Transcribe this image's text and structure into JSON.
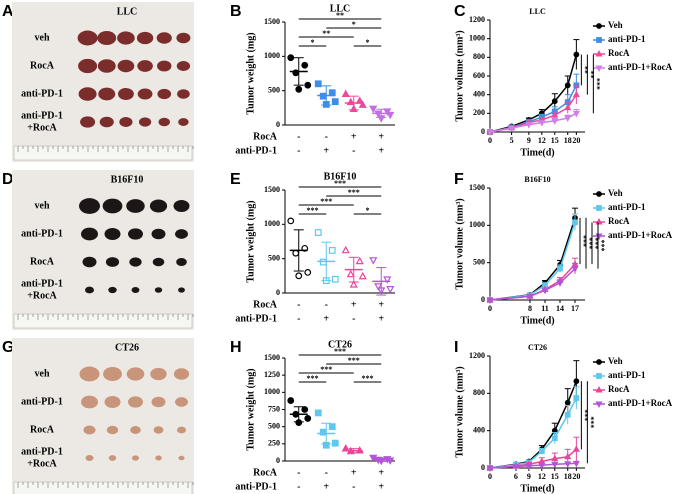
{
  "photos": [
    {
      "letter": "A",
      "title": "LLC",
      "rows": [
        [
          "veh"
        ],
        [
          "RocA"
        ],
        [
          "anti-PD-1"
        ],
        [
          "anti-PD-1",
          "+RocA"
        ]
      ]
    },
    {
      "letter": "D",
      "title": "B16F10",
      "rows": [
        [
          "veh"
        ],
        [
          "anti-PD-1"
        ],
        [
          "RocA"
        ],
        [
          "anti-PD-1",
          "+RocA"
        ]
      ]
    },
    {
      "letter": "G",
      "title": "CT26",
      "rows": [
        [
          "veh"
        ],
        [
          "anti-PD-1"
        ],
        [
          "RocA"
        ],
        [
          "anti-PD-1",
          "+RocA"
        ]
      ]
    }
  ],
  "chart_data": [
    {
      "type": "strip",
      "letter": "B",
      "title": "LLC",
      "ylabel": "Tumor weight (mg)",
      "ylim": [
        0,
        1500
      ],
      "yticks": [
        0,
        500,
        1000,
        1500
      ],
      "open_markers": false,
      "factor_rows": [
        {
          "label": "RocA",
          "signs": [
            "-",
            "-",
            "+",
            "+"
          ]
        },
        {
          "label": "anti-PD-1",
          "signs": [
            "-",
            "+",
            "-",
            "+"
          ]
        }
      ],
      "groups": [
        {
          "color": "#000000",
          "marker": "circle",
          "values": [
            980,
            870,
            760,
            580,
            520
          ],
          "mean": 780,
          "error": 200
        },
        {
          "color": "#3d8ee6",
          "marker": "square",
          "values": [
            600,
            470,
            420,
            340,
            300
          ],
          "mean": 430,
          "error": 140
        },
        {
          "color": "#ec4a9c",
          "marker": "triangle",
          "values": [
            450,
            350,
            330,
            290,
            230
          ],
          "mean": 320,
          "error": 100
        },
        {
          "color": "#c070e0",
          "marker": "triangle-down",
          "values": [
            240,
            200,
            170,
            150,
            100
          ],
          "mean": 170,
          "error": 60
        }
      ],
      "brackets": [
        {
          "from": 0,
          "to": 1,
          "label": "*"
        },
        {
          "from": 2,
          "to": 3,
          "label": "*"
        },
        {
          "from": 0,
          "to": 2,
          "label": "**"
        },
        {
          "from": 1,
          "to": 3,
          "label": "*"
        },
        {
          "from": 0,
          "to": 3,
          "label": "**"
        }
      ]
    },
    {
      "type": "line",
      "letter": "C",
      "title": "LLC",
      "xlabel": "Time(d)",
      "ylabel": "Tumor volume (mm³)",
      "x": [
        0,
        5,
        9,
        12,
        15,
        18,
        20
      ],
      "xlim": [
        0,
        22
      ],
      "xticks": [
        0,
        5,
        9,
        12,
        15,
        18,
        20
      ],
      "ylim": [
        0,
        1200
      ],
      "yticks": [
        0,
        200,
        400,
        600,
        800,
        1000,
        1200
      ],
      "series": [
        {
          "name": "Veh",
          "color": "#000000",
          "marker": "circle",
          "values": [
            0,
            60,
            130,
            200,
            330,
            500,
            830
          ],
          "errors": [
            0,
            10,
            20,
            40,
            80,
            100,
            160
          ]
        },
        {
          "name": "anti-PD-1",
          "color": "#3d8ee6",
          "marker": "square",
          "values": [
            0,
            50,
            110,
            160,
            220,
            320,
            500
          ],
          "errors": [
            0,
            8,
            15,
            30,
            50,
            80,
            120
          ]
        },
        {
          "name": "RocA",
          "color": "#ec4a9c",
          "marker": "triangle",
          "values": [
            0,
            45,
            100,
            130,
            180,
            260,
            400
          ],
          "errors": [
            0,
            8,
            15,
            25,
            40,
            60,
            100
          ]
        },
        {
          "name": "anti-PD-1+RocA",
          "color": "#d07ee8",
          "marker": "triangle-down",
          "values": [
            0,
            40,
            80,
            100,
            120,
            150,
            200
          ],
          "errors": [
            0,
            6,
            10,
            20,
            25,
            30,
            40
          ]
        }
      ],
      "brackets": [
        {
          "from": 0,
          "to": 1,
          "label": "**"
        },
        {
          "from": 0,
          "to": 2,
          "label": "**"
        },
        {
          "from": 0,
          "to": 3,
          "label": "***"
        }
      ]
    },
    {
      "type": "strip",
      "letter": "E",
      "title": "B16F10",
      "ylabel": "Tumor weight (mg)",
      "ylim": [
        0,
        1500
      ],
      "yticks": [
        0,
        500,
        1000,
        1500
      ],
      "open_markers": true,
      "factor_rows": [
        {
          "label": "RocA",
          "signs": [
            "-",
            "-",
            "+",
            "+"
          ]
        },
        {
          "label": "anti-PD-1",
          "signs": [
            "-",
            "+",
            "-",
            "+"
          ]
        }
      ],
      "groups": [
        {
          "color": "#000000",
          "marker": "circle",
          "values": [
            1050,
            650,
            580,
            300,
            250
          ],
          "mean": 620,
          "error": 300
        },
        {
          "color": "#5ec8ec",
          "marker": "square",
          "values": [
            880,
            620,
            450,
            200,
            180
          ],
          "mean": 460,
          "error": 280
        },
        {
          "color": "#e8469a",
          "marker": "triangle",
          "values": [
            620,
            460,
            270,
            240,
            120
          ],
          "mean": 340,
          "error": 180
        },
        {
          "color": "#b354d9",
          "marker": "triangle-down",
          "values": [
            480,
            200,
            100,
            60,
            40
          ],
          "mean": 170,
          "error": 200
        }
      ],
      "brackets": [
        {
          "from": 0,
          "to": 1,
          "label": "***"
        },
        {
          "from": 2,
          "to": 3,
          "label": "*"
        },
        {
          "from": 0,
          "to": 2,
          "label": "***"
        },
        {
          "from": 1,
          "to": 3,
          "label": "***"
        },
        {
          "from": 0,
          "to": 3,
          "label": "***"
        }
      ]
    },
    {
      "type": "line",
      "letter": "F",
      "title": "B16F10",
      "xlabel": "Time(d)",
      "ylabel": "Tumor volume (mm³)",
      "x": [
        0,
        8,
        11,
        14,
        17
      ],
      "xlim": [
        0,
        19
      ],
      "xticks": [
        0,
        8,
        11,
        14,
        17
      ],
      "ylim": [
        0,
        1500
      ],
      "yticks": [
        0,
        500,
        1000,
        1500
      ],
      "series": [
        {
          "name": "Veh",
          "color": "#000000",
          "marker": "circle",
          "values": [
            0,
            70,
            230,
            470,
            1100
          ],
          "errors": [
            0,
            10,
            30,
            60,
            130
          ]
        },
        {
          "name": "anti-PD-1",
          "color": "#5ec8ec",
          "marker": "square",
          "values": [
            0,
            65,
            200,
            420,
            1040
          ],
          "errors": [
            0,
            10,
            25,
            50,
            110
          ]
        },
        {
          "name": "RocA",
          "color": "#e8469a",
          "marker": "triangle",
          "values": [
            0,
            50,
            140,
            260,
            480
          ],
          "errors": [
            0,
            8,
            20,
            40,
            80
          ]
        },
        {
          "name": "anti-PD-1+RocA",
          "color": "#b354d9",
          "marker": "triangle-down",
          "values": [
            0,
            50,
            130,
            230,
            420
          ],
          "errors": [
            0,
            8,
            20,
            40,
            70
          ]
        }
      ],
      "brackets": [
        {
          "from": 0,
          "to": 2,
          "label": "***"
        },
        {
          "from": 0,
          "to": 3,
          "label": "***"
        },
        {
          "from": 1,
          "to": 2,
          "label": "***"
        },
        {
          "from": 1,
          "to": 3,
          "label": "***"
        }
      ]
    },
    {
      "type": "strip",
      "letter": "H",
      "title": "CT26",
      "ylabel": "Tumor weight (mg)",
      "ylim": [
        0,
        1500
      ],
      "yticks": [
        0,
        250,
        500,
        750,
        1000,
        1250,
        1500
      ],
      "open_markers": false,
      "factor_rows": [
        {
          "label": "RocA",
          "signs": [
            "-",
            "-",
            "+",
            "+"
          ]
        },
        {
          "label": "anti-PD-1",
          "signs": [
            "-",
            "+",
            "-",
            "+"
          ]
        }
      ],
      "groups": [
        {
          "color": "#000000",
          "marker": "circle",
          "values": [
            880,
            750,
            680,
            620,
            560
          ],
          "mean": 680,
          "error": 110
        },
        {
          "color": "#5ec8ec",
          "marker": "square",
          "values": [
            700,
            500,
            420,
            260,
            230
          ],
          "mean": 400,
          "error": 150
        },
        {
          "color": "#e8469a",
          "marker": "triangle",
          "values": [
            180,
            150,
            140
          ],
          "mean": 150,
          "error": 30
        },
        {
          "color": "#b354d9",
          "marker": "triangle-down",
          "values": [
            50,
            30,
            20,
            10,
            5
          ],
          "mean": 25,
          "error": 20
        }
      ],
      "brackets": [
        {
          "from": 0,
          "to": 1,
          "label": "***"
        },
        {
          "from": 2,
          "to": 3,
          "label": "***"
        },
        {
          "from": 0,
          "to": 2,
          "label": "***"
        },
        {
          "from": 1,
          "to": 3,
          "label": "***"
        },
        {
          "from": 0,
          "to": 3,
          "label": "***"
        }
      ]
    },
    {
      "type": "line",
      "letter": "I",
      "title": "CT26",
      "xlabel": "Time(d)",
      "ylabel": "Tumor volume (mm³)",
      "x": [
        0,
        6,
        9,
        12,
        15,
        18,
        20
      ],
      "xlim": [
        0,
        22
      ],
      "xticks": [
        0,
        6,
        9,
        12,
        15,
        18,
        20
      ],
      "ylim": [
        0,
        1200
      ],
      "yticks": [
        0,
        400,
        800,
        1200
      ],
      "series": [
        {
          "name": "Veh",
          "color": "#000000",
          "marker": "circle",
          "values": [
            0,
            40,
            70,
            200,
            400,
            700,
            930
          ],
          "errors": [
            0,
            10,
            15,
            40,
            80,
            150,
            220
          ]
        },
        {
          "name": "anti-PD-1",
          "color": "#5ec8ec",
          "marker": "square",
          "values": [
            0,
            35,
            60,
            180,
            320,
            570,
            750
          ],
          "errors": [
            0,
            8,
            12,
            30,
            60,
            100,
            120
          ]
        },
        {
          "name": "RocA",
          "color": "#e8469a",
          "marker": "triangle",
          "values": [
            0,
            20,
            40,
            70,
            100,
            120,
            200
          ],
          "errors": [
            0,
            10,
            20,
            40,
            60,
            80,
            130
          ]
        },
        {
          "name": "anti-PD-1+RocA",
          "color": "#b354d9",
          "marker": "triangle-down",
          "values": [
            0,
            15,
            25,
            30,
            40,
            45,
            50
          ],
          "errors": [
            0,
            8,
            10,
            15,
            20,
            20,
            20
          ]
        }
      ],
      "brackets": [
        {
          "from": 0,
          "to": 2,
          "label": "***"
        },
        {
          "from": 0,
          "to": 3,
          "label": "***"
        }
      ]
    }
  ]
}
